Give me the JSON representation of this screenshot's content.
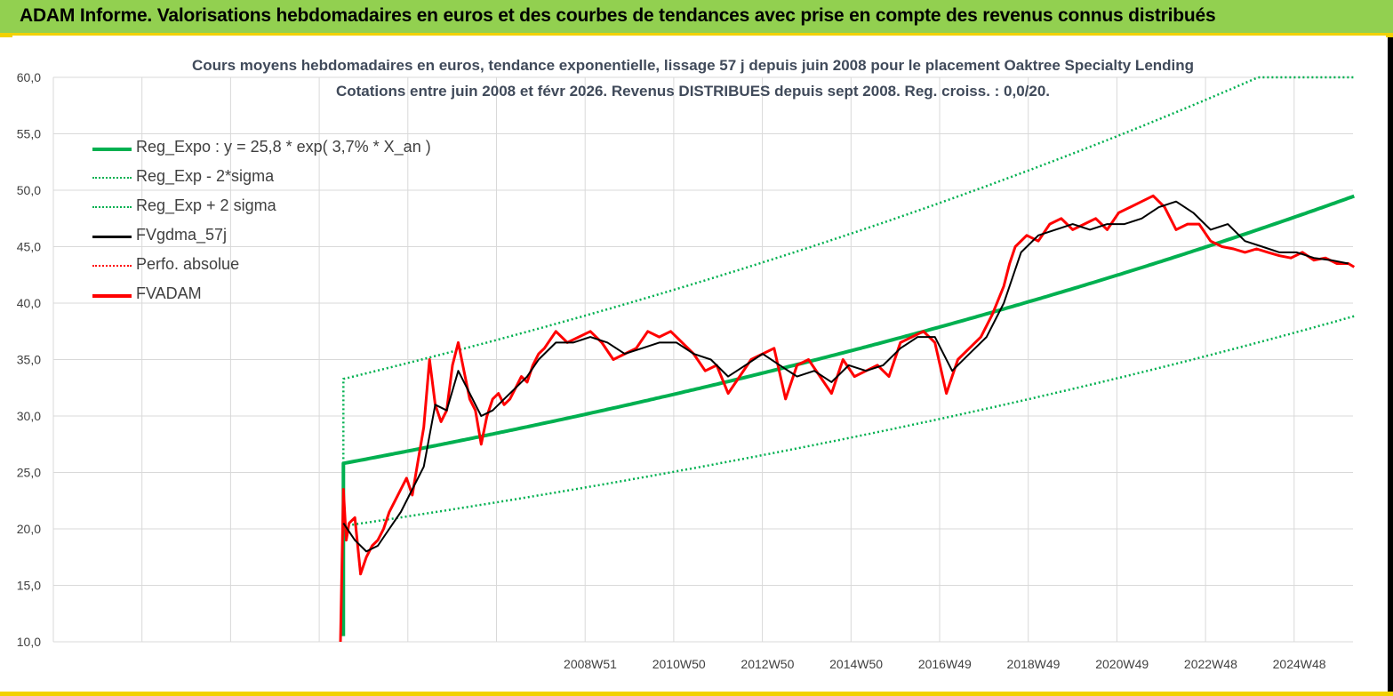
{
  "header": {
    "title": "ADAM Informe. Valorisations hebdomadaires en euros et des courbes de tendances avec prise en compte des revenus connus distribués"
  },
  "colors": {
    "header_bg": "#92d050",
    "accent": "#f2d100",
    "reg": "#00b050",
    "fv": "#ff0000",
    "gdma": "#000000",
    "grid": "#d9d9d9"
  },
  "chart_data": {
    "type": "line",
    "title": "Cours moyens hebdomadaires en euros, tendance exponentielle, lissage 57 j depuis juin 2008 pour le placement Oaktree Specialty Lending",
    "subtitle": "Cotations entre juin 2008 et févr 2026. Revenus DISTRIBUES depuis sept 2008. Reg. croiss. : 0,0/20.",
    "ylim": [
      10,
      60
    ],
    "y_ticks": [
      "10,0",
      "15,0",
      "20,0",
      "25,0",
      "30,0",
      "35,0",
      "40,0",
      "45,0",
      "50,0",
      "55,0",
      "60,0"
    ],
    "x_ticks": [
      "2008W51",
      "2010W50",
      "2012W50",
      "2014W50",
      "2016W49",
      "2018W49",
      "2020W49",
      "2022W48",
      "2024W48"
    ],
    "legend_position": "top-left",
    "legend": [
      {
        "name": "Reg_Expo : y = 25,8 * exp( 3,7% *  X_an )",
        "style": "thick-solid",
        "color": "#00b050"
      },
      {
        "name": "Reg_Exp - 2*sigma",
        "style": "dotted",
        "color": "#00b050"
      },
      {
        "name": "Reg_Exp + 2 sigma",
        "style": "dotted",
        "color": "#00b050"
      },
      {
        "name": "FVgdma_57j",
        "style": "solid",
        "color": "#000000"
      },
      {
        "name": "Perfo. absolue",
        "style": "dotted",
        "color": "#ff0000"
      },
      {
        "name": "FVADAM",
        "style": "thick-solid",
        "color": "#ff0000"
      }
    ],
    "x_range": [
      2008.5,
      2026.1
    ],
    "regression": {
      "a": 25.8,
      "rate": 0.037,
      "upper_factor": 1.29,
      "lower_factor": 0.785
    },
    "fvadam_series": {
      "x": [
        2008.45,
        2008.5,
        2008.55,
        2008.6,
        2008.7,
        2008.8,
        2008.9,
        2009.0,
        2009.1,
        2009.2,
        2009.3,
        2009.4,
        2009.5,
        2009.6,
        2009.7,
        2009.8,
        2009.9,
        2010.0,
        2010.1,
        2010.2,
        2010.3,
        2010.4,
        2010.5,
        2010.6,
        2010.7,
        2010.8,
        2010.9,
        2011.0,
        2011.1,
        2011.2,
        2011.3,
        2011.4,
        2011.5,
        2011.6,
        2011.7,
        2011.8,
        2011.9,
        2012.0,
        2012.2,
        2012.4,
        2012.6,
        2012.8,
        2013.0,
        2013.2,
        2013.4,
        2013.6,
        2013.8,
        2014.0,
        2014.2,
        2014.4,
        2014.6,
        2014.8,
        2015.0,
        2015.2,
        2015.4,
        2015.6,
        2015.8,
        2016.0,
        2016.2,
        2016.4,
        2016.6,
        2016.8,
        2017.0,
        2017.2,
        2017.4,
        2017.6,
        2017.8,
        2018.0,
        2018.2,
        2018.4,
        2018.6,
        2018.8,
        2019.0,
        2019.2,
        2019.4,
        2019.6,
        2019.8,
        2020.0,
        2020.1,
        2020.2,
        2020.4,
        2020.6,
        2020.8,
        2021.0,
        2021.2,
        2021.4,
        2021.6,
        2021.8,
        2022.0,
        2022.2,
        2022.4,
        2022.6,
        2022.8,
        2023.0,
        2023.2,
        2023.4,
        2023.6,
        2023.8,
        2024.0,
        2024.2,
        2024.4,
        2024.6,
        2024.8,
        2025.0,
        2025.2,
        2025.4,
        2025.6,
        2025.8,
        2026.0,
        2026.1
      ],
      "y": [
        10.0,
        23.5,
        19.0,
        20.5,
        21.0,
        16.0,
        17.5,
        18.5,
        19.0,
        20.0,
        21.5,
        22.5,
        23.5,
        24.5,
        23.0,
        26.0,
        29.0,
        35.0,
        31.0,
        29.5,
        30.5,
        34.5,
        36.5,
        34.0,
        31.5,
        30.5,
        27.5,
        30.0,
        31.5,
        32.0,
        31.0,
        31.5,
        32.5,
        33.5,
        33.0,
        34.5,
        35.5,
        36.0,
        37.5,
        36.5,
        37.0,
        37.5,
        36.5,
        35.0,
        35.5,
        36.0,
        37.5,
        37.0,
        37.5,
        36.5,
        35.5,
        34.0,
        34.5,
        32.0,
        33.5,
        35.0,
        35.5,
        36.0,
        31.5,
        34.5,
        35.0,
        33.5,
        32.0,
        35.0,
        33.5,
        34.0,
        34.5,
        33.5,
        36.5,
        37.0,
        37.5,
        36.5,
        32.0,
        35.0,
        36.0,
        37.0,
        39.0,
        41.5,
        43.5,
        45.0,
        46.0,
        45.5,
        47.0,
        47.5,
        46.5,
        47.0,
        47.5,
        46.5,
        48.0,
        48.5,
        49.0,
        49.5,
        48.5,
        46.5,
        47.0,
        47.0,
        45.5,
        45.0,
        44.8,
        44.5,
        44.8,
        44.5,
        44.2,
        44.0,
        44.5,
        43.8,
        44.0,
        43.5,
        43.5,
        43.2
      ]
    },
    "gdma_series": {
      "x": [
        2008.5,
        2008.7,
        2008.9,
        2009.1,
        2009.3,
        2009.5,
        2009.7,
        2009.9,
        2010.1,
        2010.3,
        2010.5,
        2010.7,
        2010.9,
        2011.1,
        2011.3,
        2011.5,
        2011.7,
        2011.9,
        2012.2,
        2012.5,
        2012.8,
        2013.1,
        2013.4,
        2013.7,
        2014.0,
        2014.3,
        2014.6,
        2014.9,
        2015.2,
        2015.5,
        2015.8,
        2016.1,
        2016.4,
        2016.7,
        2017.0,
        2017.3,
        2017.6,
        2017.9,
        2018.2,
        2018.5,
        2018.8,
        2019.1,
        2019.4,
        2019.7,
        2020.0,
        2020.3,
        2020.6,
        2020.9,
        2021.2,
        2021.5,
        2021.8,
        2022.1,
        2022.4,
        2022.7,
        2023.0,
        2023.3,
        2023.6,
        2023.9,
        2024.2,
        2024.5,
        2024.8,
        2025.1,
        2025.4,
        2025.7,
        2026.0
      ],
      "y": [
        20.5,
        19.0,
        18.0,
        18.5,
        20.0,
        21.5,
        23.5,
        25.5,
        31.0,
        30.5,
        34.0,
        32.0,
        30.0,
        30.5,
        31.5,
        32.5,
        33.5,
        35.0,
        36.5,
        36.5,
        37.0,
        36.5,
        35.5,
        36.0,
        36.5,
        36.5,
        35.5,
        35.0,
        33.5,
        34.5,
        35.5,
        34.5,
        33.5,
        34.0,
        33.0,
        34.5,
        34.0,
        34.5,
        36.0,
        37.0,
        37.0,
        34.0,
        35.5,
        37.0,
        40.0,
        44.5,
        46.0,
        46.5,
        47.0,
        46.5,
        47.0,
        47.0,
        47.5,
        48.5,
        49.0,
        48.0,
        46.5,
        47.0,
        45.5,
        45.0,
        44.5,
        44.5,
        44.0,
        43.8,
        43.5
      ]
    }
  }
}
